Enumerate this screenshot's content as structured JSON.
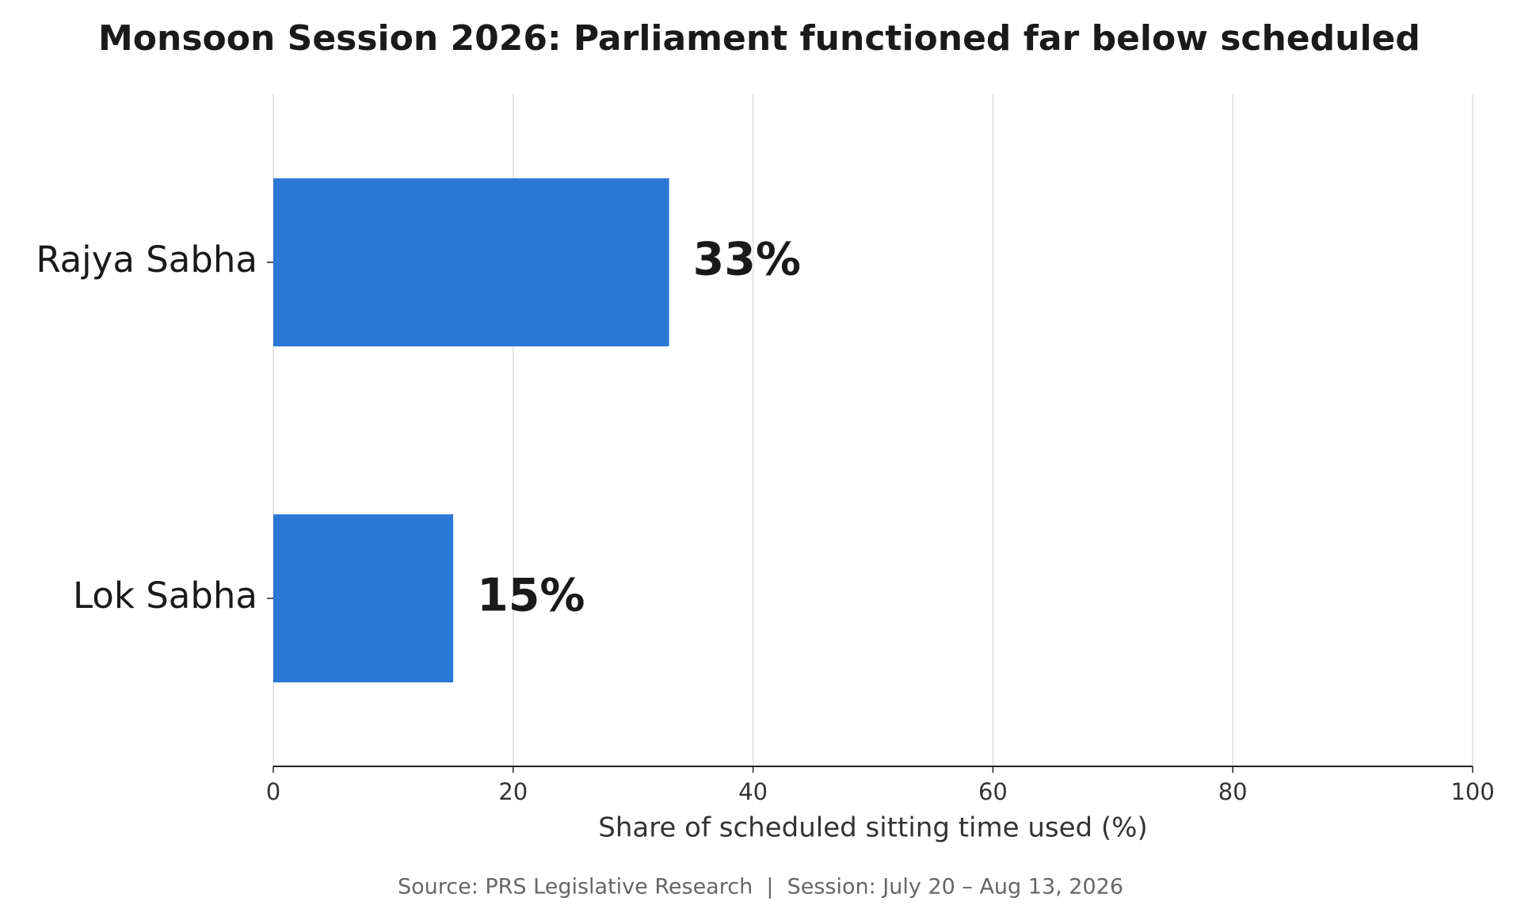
{
  "chart_data": {
    "type": "barh",
    "title": "Monsoon Session 2026: Parliament functioned far below scheduled",
    "categories": [
      "Rajya Sabha",
      "Lok Sabha"
    ],
    "values": [
      33,
      15
    ],
    "value_labels": [
      "33%",
      "15%"
    ],
    "color": "#2a78d6",
    "xlabel": "Share of scheduled sitting time used (%)",
    "xlim": [
      0,
      100
    ],
    "xticks": [
      0,
      20,
      40,
      60,
      80,
      100
    ],
    "grid": true,
    "source": "Source: PRS Legislative Research  |  Session: July 20 – Aug 13, 2026"
  }
}
